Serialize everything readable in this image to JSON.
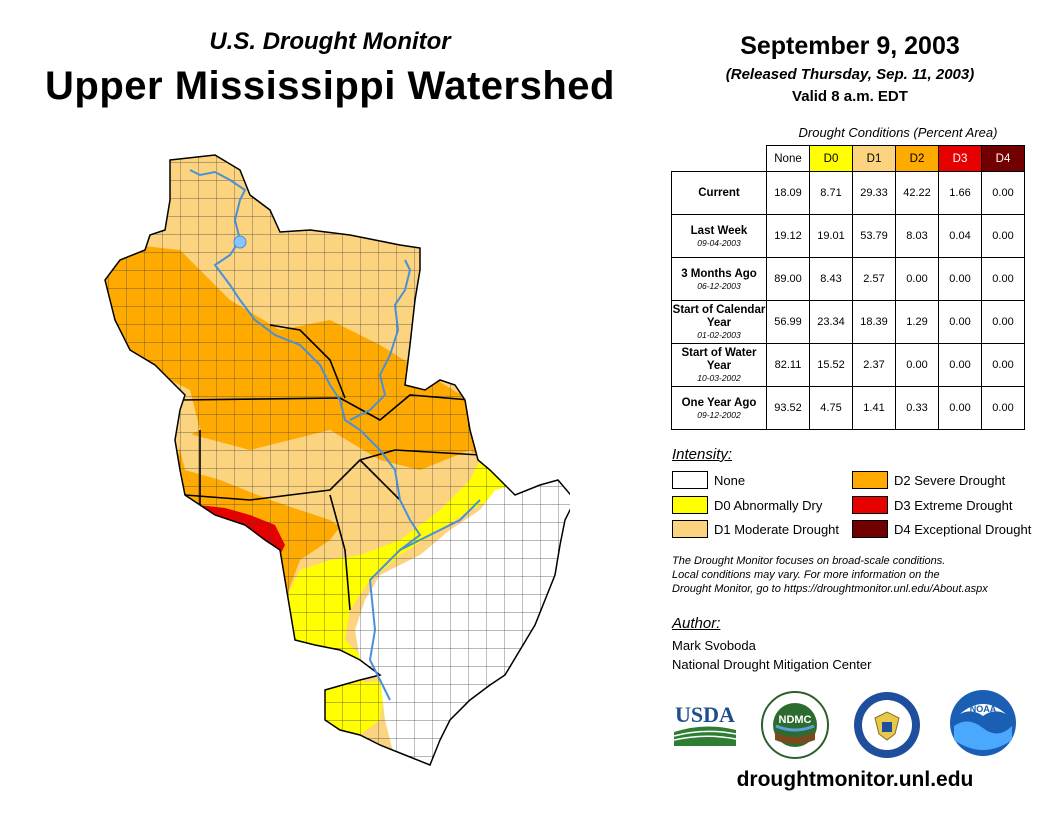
{
  "header": {
    "subtitle": "U.S. Drought Monitor",
    "title": "Upper Mississippi Watershed",
    "date": "September 9, 2003",
    "released": "(Released Thursday, Sep. 11, 2003)",
    "valid": "Valid 8 a.m. EDT"
  },
  "table": {
    "caption": "Drought Conditions (Percent Area)",
    "columns": [
      "None",
      "D0",
      "D1",
      "D2",
      "D3",
      "D4"
    ],
    "column_colors": [
      "#ffffff",
      "#ffff00",
      "#fcd37f",
      "#ffaa00",
      "#e60000",
      "#730000"
    ],
    "rows": [
      {
        "label": "Current",
        "date": "",
        "values": [
          "18.09",
          "8.71",
          "29.33",
          "42.22",
          "1.66",
          "0.00"
        ]
      },
      {
        "label": "Last Week",
        "date": "09-04-2003",
        "values": [
          "19.12",
          "19.01",
          "53.79",
          "8.03",
          "0.04",
          "0.00"
        ]
      },
      {
        "label": "3 Months Ago",
        "date": "06-12-2003",
        "values": [
          "89.00",
          "8.43",
          "2.57",
          "0.00",
          "0.00",
          "0.00"
        ]
      },
      {
        "label": "Start of Calendar Year",
        "date": "01-02-2003",
        "values": [
          "56.99",
          "23.34",
          "18.39",
          "1.29",
          "0.00",
          "0.00"
        ]
      },
      {
        "label": "Start of Water Year",
        "date": "10-03-2002",
        "values": [
          "82.11",
          "15.52",
          "2.37",
          "0.00",
          "0.00",
          "0.00"
        ]
      },
      {
        "label": "One Year Ago",
        "date": "09-12-2002",
        "values": [
          "93.52",
          "4.75",
          "1.41",
          "0.33",
          "0.00",
          "0.00"
        ]
      }
    ]
  },
  "legend": {
    "title": "Intensity:",
    "items": [
      {
        "label": "None",
        "color": "#ffffff"
      },
      {
        "label": "D0 Abnormally Dry",
        "color": "#ffff00"
      },
      {
        "label": "D1 Moderate Drought",
        "color": "#fcd37f"
      },
      {
        "label": "D2 Severe Drought",
        "color": "#ffaa00"
      },
      {
        "label": "D3 Extreme Drought",
        "color": "#e60000"
      },
      {
        "label": "D4 Exceptional Drought",
        "color": "#730000"
      }
    ]
  },
  "note": {
    "line1": "The Drought Monitor focuses on broad-scale conditions.",
    "line2": "Local conditions may vary. For more information on the",
    "line3": "Drought Monitor, go to https://droughtmonitor.unl.edu/About.aspx"
  },
  "author": {
    "title": "Author:",
    "name": "Mark Svoboda",
    "org": "National Drought Mitigation Center"
  },
  "logos": {
    "usda": "USDA",
    "ndmc": "NDMC",
    "commerce": "",
    "noaa": "NOAA",
    "icons": [
      "usda-logo-icon",
      "ndmc-logo-icon",
      "commerce-seal-icon",
      "noaa-logo-icon"
    ]
  },
  "footer": {
    "url": "droughtmonitor.unl.edu"
  }
}
